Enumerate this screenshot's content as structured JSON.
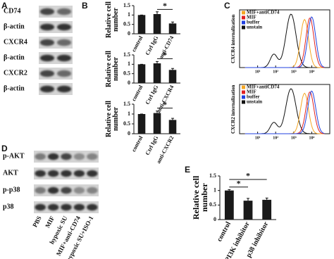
{
  "panel_labels": [
    "A",
    "B",
    "C",
    "D",
    "E"
  ],
  "blot_a": {
    "rows": [
      "CD74",
      "β-actin",
      "CXCR4",
      "β-actin",
      "CXCR2",
      "β-actin"
    ]
  },
  "blot_d": {
    "rows": [
      "p-AKT",
      "AKT",
      "p-p38",
      "p38"
    ],
    "lanes": [
      "PBS",
      "MIF",
      "hypoxic SU",
      "MIF+anti-CD74",
      "hypoxic SU+ISO-1"
    ]
  },
  "flow": [
    {
      "ylabel": "CXCR4 internalization",
      "xscale": "log",
      "xlim": [
        1,
        100000
      ],
      "xticks": [
        {
          "value": 10,
          "label": "10¹"
        },
        {
          "value": 100,
          "label": "10²"
        },
        {
          "value": 1000,
          "label": "10³"
        },
        {
          "value": 10000,
          "label": "10⁴"
        }
      ],
      "legend": [
        {
          "name": "MIF+antiCD74",
          "color": "#f5a623"
        },
        {
          "name": "MIF",
          "color": "#e02020"
        },
        {
          "name": "buffer",
          "color": "#2040e0"
        },
        {
          "name": "unstain",
          "color": "#111111"
        }
      ]
    },
    {
      "ylabel": "CXCR2 internalization",
      "xscale": "log",
      "xlim": [
        1,
        100000
      ],
      "xticks": [
        {
          "value": 10,
          "label": "10¹"
        },
        {
          "value": 100,
          "label": "10²"
        },
        {
          "value": 1000,
          "label": "10³"
        },
        {
          "value": 10000,
          "label": "10⁴"
        }
      ],
      "legend": [
        {
          "name": "MIF+antiCD74",
          "color": "#f5a623"
        },
        {
          "name": "MIF",
          "color": "#e02020"
        },
        {
          "name": "buffer",
          "color": "#2040e0"
        },
        {
          "name": "unstain",
          "color": "#111111"
        }
      ]
    }
  ],
  "chart_data": [
    {
      "type": "bar",
      "ylabel": "Relative cell number",
      "categories": [
        "control",
        "Ctrl IgG",
        "anti-CD74"
      ],
      "values": [
        1.0,
        1.05,
        0.55
      ],
      "errors": [
        0,
        0.12,
        0.08
      ],
      "color": "#1a1a1a",
      "ylim": [
        0,
        1.5
      ],
      "yticks": [
        0,
        0.5,
        1,
        1.5
      ],
      "annotations": [
        "*"
      ]
    },
    {
      "type": "bar",
      "ylabel": "Relative cell number",
      "categories": [
        "control",
        "Ctrl IgG",
        "anti-CXCR4"
      ],
      "values": [
        1.0,
        1.05,
        0.7
      ],
      "errors": [
        0,
        0.1,
        0.08
      ],
      "color": "#1a1a1a",
      "ylim": [
        0,
        1.5
      ],
      "yticks": [
        0,
        0.5,
        1,
        1.5
      ],
      "annotations": [
        "*"
      ]
    },
    {
      "type": "bar",
      "ylabel": "Relative cell number",
      "categories": [
        "control",
        "Ctrl IgG",
        "anti-CXCR2"
      ],
      "values": [
        1.0,
        1.05,
        0.7
      ],
      "errors": [
        0,
        0.1,
        0.08
      ],
      "color": "#1a1a1a",
      "ylim": [
        0,
        1.5
      ],
      "yticks": [
        0,
        0.5,
        1,
        1.5
      ],
      "annotations": [
        "*"
      ]
    },
    {
      "type": "bar",
      "ylabel": "Relative cell number",
      "categories": [
        "control",
        "PI3K inhibitor",
        "p38 inhibitor"
      ],
      "values": [
        1.0,
        0.65,
        0.68
      ],
      "errors": [
        0.03,
        0.08,
        0.06
      ],
      "color": "#1a1a1a",
      "ylim": [
        0,
        1.5
      ],
      "yticks": [
        0,
        0.5,
        1,
        1.5
      ],
      "annotations": [
        "*",
        "*"
      ]
    }
  ]
}
